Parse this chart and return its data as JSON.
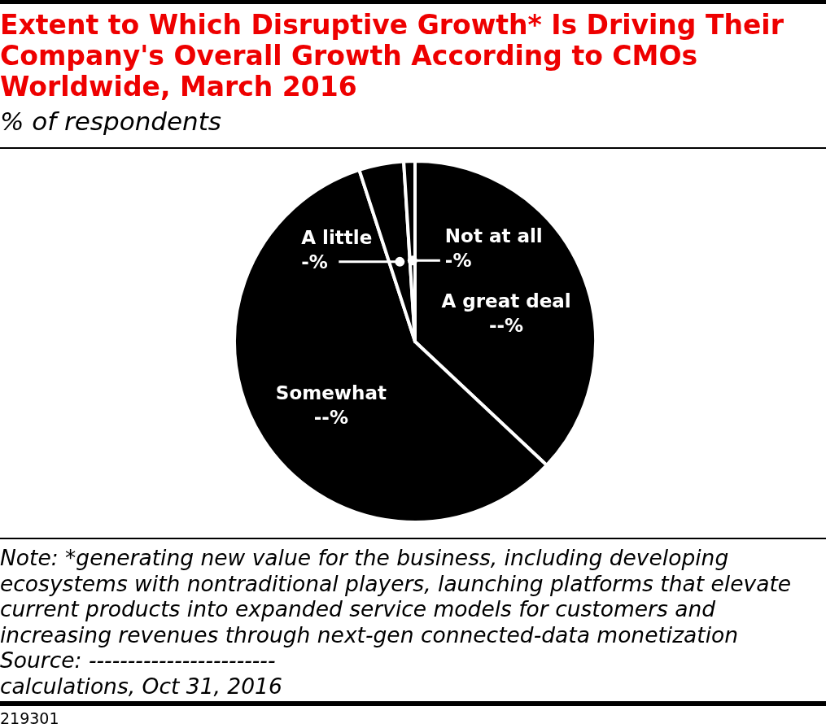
{
  "chart_data": {
    "type": "pie",
    "title": "Extent to Which Disruptive Growth* Is Driving Their Company's Overall Growth According to CMOs Worldwide, March 2016",
    "subtitle": "% of respondents",
    "categories": [
      "A great deal",
      "Somewhat",
      "A little",
      "Not at all"
    ],
    "values": [
      37,
      58,
      4,
      1
    ],
    "colors": [
      "#000000",
      "#000000",
      "#000000",
      "#000000"
    ],
    "value_labels": [
      "--%",
      "--%",
      "-%",
      "-%"
    ],
    "annotations": [
      "Note: *generating new value for the business, including developing ecosystems with nontraditional players, launching platforms that elevate current products into expanded service models for customers and increasing revenues through next-gen connected-data monetization",
      "Source: ------------------------",
      "calculations, Oct 31, 2016",
      "219301"
    ]
  }
}
